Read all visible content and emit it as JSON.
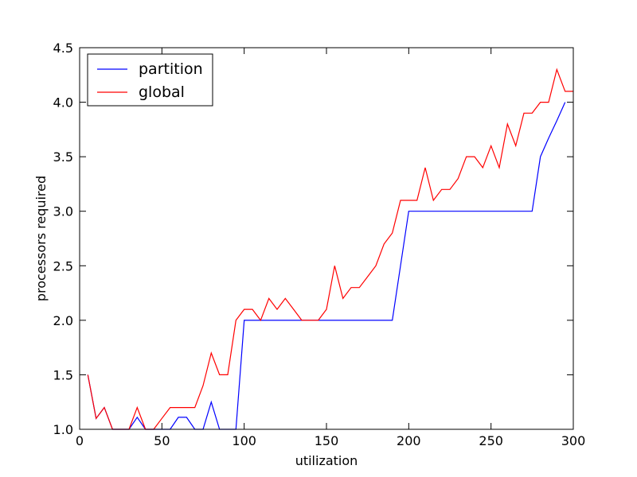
{
  "chart_data": {
    "type": "line",
    "xlabel": "utilization",
    "ylabel": "processors required",
    "xlim": [
      0,
      300
    ],
    "ylim": [
      1.0,
      4.5
    ],
    "xticks": [
      0,
      50,
      100,
      150,
      200,
      250,
      300
    ],
    "xtick_labels": [
      "0",
      "50",
      "100",
      "150",
      "200",
      "250",
      "300"
    ],
    "yticks": [
      1.0,
      1.5,
      2.0,
      2.5,
      3.0,
      3.5,
      4.0,
      4.5
    ],
    "ytick_labels": [
      "1.0",
      "1.5",
      "2.0",
      "2.5",
      "3.0",
      "3.5",
      "4.0",
      "4.5"
    ],
    "grid": false,
    "legend_position": "top-left",
    "series": [
      {
        "name": "partition",
        "color": "#0000ff",
        "x": [
          5,
          10,
          15,
          20,
          25,
          30,
          35,
          40,
          45,
          50,
          55,
          60,
          65,
          70,
          75,
          80,
          85,
          90,
          95,
          100,
          105,
          110,
          115,
          120,
          125,
          130,
          135,
          140,
          145,
          150,
          155,
          160,
          165,
          170,
          175,
          180,
          185,
          190,
          195,
          200,
          205,
          210,
          215,
          220,
          225,
          230,
          235,
          240,
          245,
          250,
          255,
          260,
          265,
          270,
          275,
          280,
          285,
          290,
          295
        ],
        "y": [
          1.5,
          1.1,
          1.2,
          1.0,
          1.0,
          1.0,
          1.11,
          1.0,
          1.0,
          1.0,
          1.0,
          1.11,
          1.11,
          1.0,
          1.0,
          1.25,
          1.0,
          1.0,
          1.0,
          2.0,
          2.0,
          2.0,
          2.0,
          2.0,
          2.0,
          2.0,
          2.0,
          2.0,
          2.0,
          2.0,
          2.0,
          2.0,
          2.0,
          2.0,
          2.0,
          2.0,
          2.0,
          2.0,
          2.5,
          3.0,
          3.0,
          3.0,
          3.0,
          3.0,
          3.0,
          3.0,
          3.0,
          3.0,
          3.0,
          3.0,
          3.0,
          3.0,
          3.0,
          3.0,
          3.0,
          3.5,
          3.67,
          3.83,
          4.0
        ]
      },
      {
        "name": "global",
        "color": "#ff0000",
        "x": [
          5,
          10,
          15,
          20,
          25,
          30,
          35,
          40,
          45,
          50,
          55,
          60,
          65,
          70,
          75,
          80,
          85,
          90,
          95,
          100,
          105,
          110,
          115,
          120,
          125,
          130,
          135,
          140,
          145,
          150,
          155,
          160,
          165,
          170,
          175,
          180,
          185,
          190,
          195,
          200,
          205,
          210,
          215,
          220,
          225,
          230,
          235,
          240,
          245,
          250,
          255,
          260,
          265,
          270,
          275,
          280,
          285,
          290,
          295,
          300
        ],
        "y": [
          1.5,
          1.1,
          1.2,
          1.0,
          1.0,
          1.0,
          1.2,
          1.0,
          1.0,
          1.1,
          1.2,
          1.2,
          1.2,
          1.2,
          1.4,
          1.7,
          1.5,
          1.5,
          2.0,
          2.1,
          2.1,
          2.0,
          2.2,
          2.1,
          2.2,
          2.1,
          2.0,
          2.0,
          2.0,
          2.1,
          2.5,
          2.2,
          2.3,
          2.3,
          2.4,
          2.5,
          2.7,
          2.8,
          3.1,
          3.1,
          3.1,
          3.4,
          3.1,
          3.2,
          3.2,
          3.3,
          3.5,
          3.5,
          3.4,
          3.6,
          3.4,
          3.8,
          3.6,
          3.9,
          3.9,
          4.0,
          4.0,
          4.3,
          4.1,
          4.1
        ]
      }
    ]
  }
}
